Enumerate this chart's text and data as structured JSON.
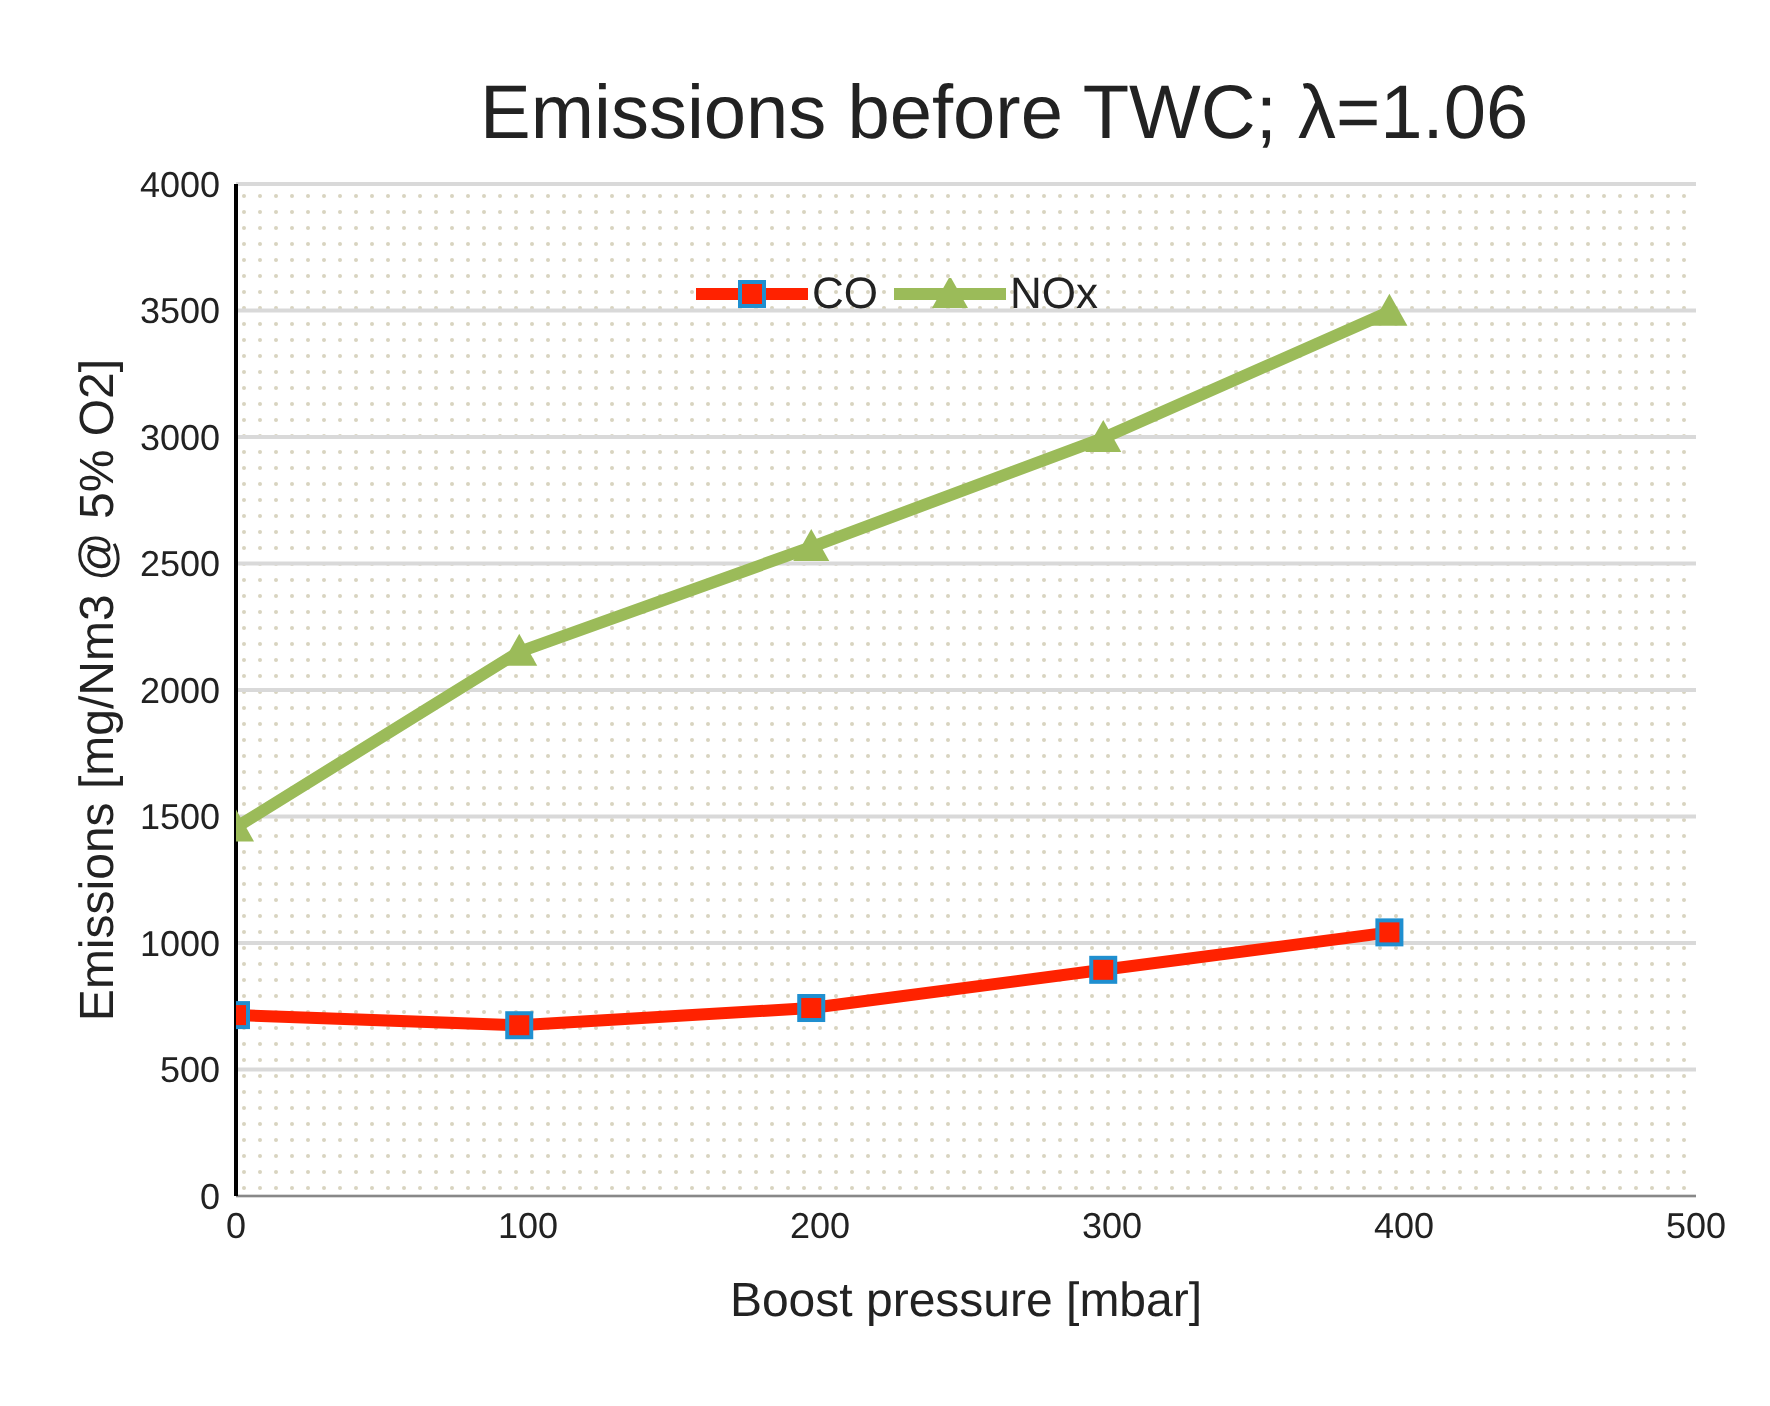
{
  "chart_data": {
    "type": "line",
    "title": "Emissions before TWC; λ=1.06",
    "xlabel": "Boost pressure [mbar]",
    "ylabel": "Emissions [mg/Nm3 @ 5% O2]",
    "xlim": [
      0,
      500
    ],
    "xticks": [
      0,
      100,
      200,
      300,
      400,
      500
    ],
    "ylim": [
      0,
      4000
    ],
    "yticks": [
      0,
      500,
      1000,
      1500,
      2000,
      2500,
      3000,
      3500,
      4000
    ],
    "grid": "y",
    "legend": "top",
    "x": [
      0,
      97,
      197,
      297,
      395
    ],
    "series": [
      {
        "name": "CO",
        "color": "#ff2200",
        "marker": "square",
        "values": [
          715,
          675,
          743,
          894,
          1042
        ]
      },
      {
        "name": "NOx",
        "color": "#9bbb59",
        "marker": "triangle",
        "values": [
          1457,
          2151,
          2565,
          2996,
          3495
        ]
      }
    ]
  }
}
